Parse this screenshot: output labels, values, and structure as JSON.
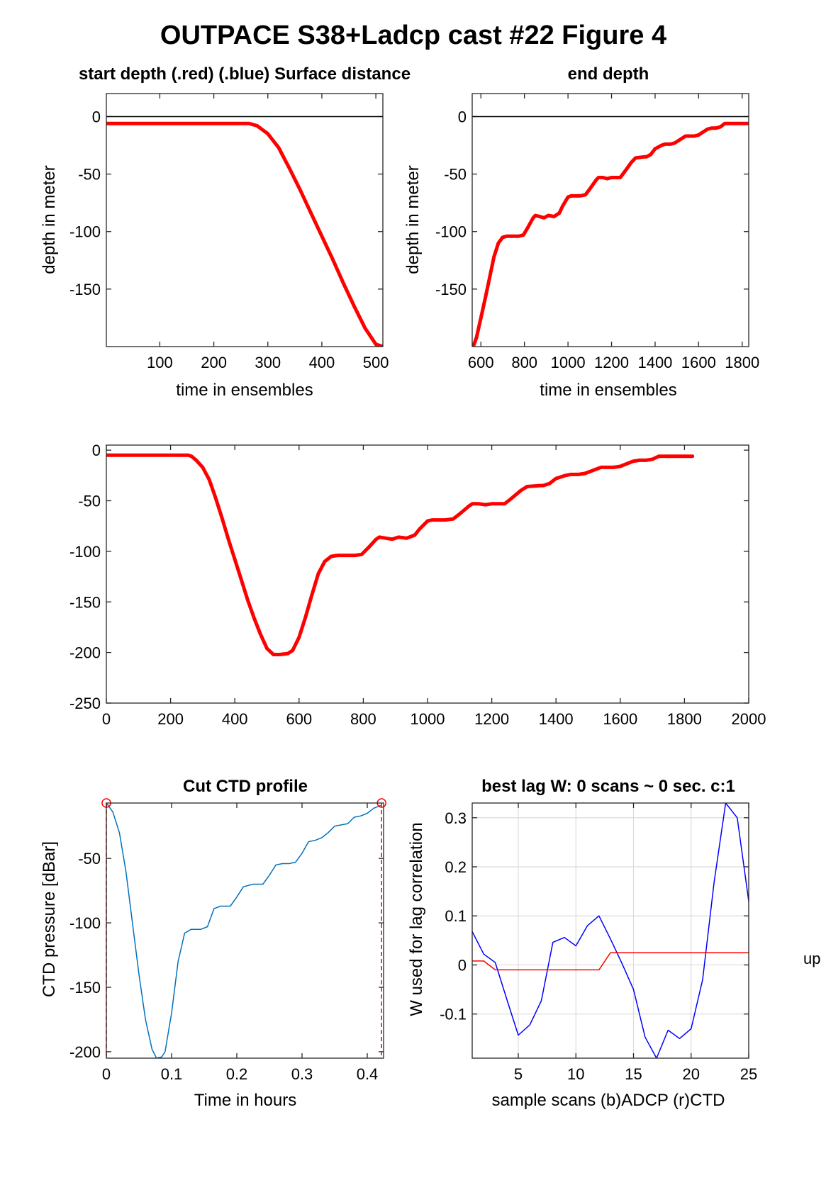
{
  "figure": {
    "suptitle": "OUTPACE S38+Ladcp cast #22   Figure 4",
    "stray_text": "up"
  },
  "chart_data": [
    {
      "id": "p1",
      "type": "line",
      "title": "start depth (.red) (.blue) Surface distance",
      "xlabel": "time in ensembles",
      "ylabel": "depth in meter",
      "xlim": [
        1,
        513
      ],
      "ylim": [
        -200,
        20
      ],
      "xticks": [
        100,
        200,
        300,
        400,
        500
      ],
      "yticks": [
        0,
        -50,
        -100,
        -150
      ],
      "grid": false,
      "box": true,
      "hline": 0,
      "series": [
        {
          "color": "#ff0000",
          "width": 5,
          "x": [
            1,
            100,
            200,
            255,
            265,
            280,
            300,
            320,
            340,
            360,
            380,
            400,
            420,
            440,
            460,
            480,
            500,
            513
          ],
          "y": [
            -6,
            -6,
            -6,
            -6,
            -6,
            -8,
            -15,
            -27,
            -45,
            -64,
            -84,
            -104,
            -124,
            -145,
            -165,
            -184,
            -198,
            -200
          ]
        }
      ]
    },
    {
      "id": "p2",
      "type": "line",
      "title": "end depth",
      "xlabel": "time in ensembles",
      "ylabel": "depth in meter",
      "xlim": [
        560,
        1830
      ],
      "ylim": [
        -200,
        20
      ],
      "xticks": [
        600,
        800,
        1000,
        1200,
        1400,
        1600,
        1800
      ],
      "yticks": [
        0,
        -50,
        -100,
        -150
      ],
      "grid": false,
      "box": true,
      "hline": 0,
      "series": [
        {
          "color": "#ff0000",
          "width": 5,
          "x": [
            565,
            580,
            600,
            620,
            640,
            660,
            680,
            700,
            720,
            760,
            775,
            795,
            820,
            840,
            850,
            870,
            890,
            910,
            935,
            960,
            975,
            1000,
            1015,
            1040,
            1055,
            1080,
            1100,
            1130,
            1140,
            1160,
            1180,
            1200,
            1215,
            1240,
            1260,
            1290,
            1310,
            1350,
            1360,
            1380,
            1400,
            1430,
            1445,
            1470,
            1490,
            1540,
            1555,
            1580,
            1600,
            1640,
            1660,
            1680,
            1700,
            1720,
            1825
          ],
          "y": [
            -200,
            -192,
            -175,
            -158,
            -140,
            -122,
            -110,
            -105,
            -104,
            -104,
            -104,
            -103,
            -95,
            -88,
            -86,
            -87,
            -88,
            -86,
            -87,
            -84,
            -78,
            -70,
            -69,
            -69,
            -69,
            -68,
            -63,
            -55,
            -53,
            -53,
            -54,
            -53,
            -53,
            -53,
            -48,
            -40,
            -36,
            -35,
            -35,
            -33,
            -28,
            -25,
            -24,
            -24,
            -23,
            -17,
            -17,
            -17,
            -16,
            -11,
            -10,
            -10,
            -9,
            -6,
            -6
          ]
        }
      ]
    },
    {
      "id": "p3",
      "type": "line",
      "title": "",
      "xlabel": "",
      "ylabel": "",
      "xlim": [
        0,
        2000
      ],
      "ylim": [
        -250,
        5
      ],
      "xticks": [
        0,
        200,
        400,
        600,
        800,
        1000,
        1200,
        1400,
        1600,
        1800,
        2000
      ],
      "yticks": [
        0,
        -50,
        -100,
        -150,
        -200,
        -250
      ],
      "grid": false,
      "box": true,
      "series": [
        {
          "color": "#ff0000",
          "width": 5,
          "x": [
            1,
            100,
            200,
            255,
            265,
            280,
            300,
            320,
            340,
            360,
            380,
            400,
            420,
            440,
            460,
            480,
            500,
            520,
            540,
            565,
            580,
            600,
            620,
            640,
            660,
            680,
            700,
            720,
            760,
            775,
            795,
            820,
            840,
            850,
            870,
            890,
            910,
            935,
            960,
            975,
            1000,
            1015,
            1040,
            1055,
            1080,
            1100,
            1130,
            1140,
            1160,
            1180,
            1200,
            1215,
            1240,
            1260,
            1290,
            1310,
            1350,
            1360,
            1380,
            1400,
            1430,
            1445,
            1470,
            1490,
            1540,
            1555,
            1580,
            1600,
            1640,
            1660,
            1680,
            1700,
            1720,
            1825
          ],
          "y": [
            -5,
            -5,
            -5,
            -5,
            -6,
            -10,
            -17,
            -29,
            -47,
            -67,
            -88,
            -108,
            -128,
            -148,
            -166,
            -182,
            -196,
            -202,
            -202,
            -201,
            -198,
            -185,
            -165,
            -143,
            -122,
            -110,
            -105,
            -104,
            -104,
            -104,
            -103,
            -95,
            -88,
            -86,
            -87,
            -88,
            -86,
            -87,
            -84,
            -78,
            -70,
            -69,
            -69,
            -69,
            -68,
            -63,
            -55,
            -53,
            -53,
            -54,
            -53,
            -53,
            -53,
            -48,
            -40,
            -36,
            -35,
            -35,
            -33,
            -28,
            -25,
            -24,
            -24,
            -23,
            -17,
            -17,
            -17,
            -16,
            -11,
            -10,
            -10,
            -9,
            -6,
            -6
          ]
        }
      ]
    },
    {
      "id": "p4",
      "type": "line",
      "title": "Cut CTD profile",
      "xlabel": "Time in hours",
      "ylabel": "CTD pressure [dBar]",
      "xlim": [
        0,
        0.425
      ],
      "ylim": [
        -205,
        -7
      ],
      "xticks": [
        0,
        0.1,
        0.2,
        0.3,
        0.4
      ],
      "yticks": [
        -50,
        -100,
        -150,
        -200
      ],
      "grid": false,
      "box": true,
      "vlines": [
        0,
        0.422
      ],
      "markers": [
        {
          "x": 0,
          "y": -7
        },
        {
          "x": 0.422,
          "y": -7
        }
      ],
      "series": [
        {
          "color": "#0072bd",
          "width": 1.5,
          "x": [
            0,
            0.01,
            0.02,
            0.03,
            0.04,
            0.05,
            0.06,
            0.07,
            0.077,
            0.085,
            0.09,
            0.1,
            0.11,
            0.12,
            0.13,
            0.145,
            0.155,
            0.165,
            0.175,
            0.19,
            0.2,
            0.21,
            0.225,
            0.24,
            0.25,
            0.26,
            0.27,
            0.28,
            0.29,
            0.3,
            0.31,
            0.32,
            0.33,
            0.34,
            0.35,
            0.36,
            0.37,
            0.38,
            0.39,
            0.4,
            0.41,
            0.42
          ],
          "y": [
            -7,
            -14,
            -30,
            -60,
            -100,
            -140,
            -175,
            -198,
            -205,
            -204,
            -200,
            -170,
            -130,
            -108,
            -105,
            -105,
            -103,
            -89,
            -87,
            -87,
            -80,
            -72,
            -70,
            -70,
            -63,
            -55,
            -54,
            -54,
            -53,
            -46,
            -37,
            -36,
            -34,
            -30,
            -25,
            -24,
            -23,
            -18,
            -17,
            -15,
            -11,
            -9
          ]
        }
      ]
    },
    {
      "id": "p5",
      "type": "line",
      "title": "best lag W: 0 scans ~ 0 sec.  c:1",
      "xlabel": "sample scans (b)ADCP (r)CTD",
      "ylabel": "W used for lag correlation",
      "xlim": [
        1,
        25
      ],
      "ylim": [
        -0.19,
        0.33
      ],
      "xticks": [
        5,
        10,
        15,
        20,
        25
      ],
      "yticks": [
        0.3,
        0.2,
        0.1,
        0,
        -0.1
      ],
      "grid": true,
      "box": true,
      "series": [
        {
          "name": "ADCP",
          "color": "#0000ff",
          "width": 1.5,
          "x": [
            1,
            2,
            3,
            4,
            5,
            6,
            7,
            8,
            9,
            10,
            11,
            12,
            13,
            14,
            15,
            16,
            17,
            18,
            19,
            20,
            21,
            22,
            23,
            24,
            25
          ],
          "y": [
            0.068,
            0.022,
            0.005,
            -0.07,
            -0.143,
            -0.122,
            -0.073,
            0.046,
            0.056,
            0.039,
            0.08,
            0.1,
            0.053,
            0.003,
            -0.05,
            -0.147,
            -0.19,
            -0.133,
            -0.15,
            -0.13,
            -0.03,
            0.17,
            0.33,
            0.3,
            0.13
          ]
        },
        {
          "name": "CTD",
          "color": "#ff0000",
          "width": 1.5,
          "x": [
            1,
            2,
            3,
            4,
            5,
            6,
            7,
            8,
            9,
            10,
            11,
            12,
            13,
            14,
            15,
            16,
            17,
            18,
            19,
            20,
            21,
            22,
            23,
            24,
            25
          ],
          "y": [
            0.008,
            0.008,
            -0.01,
            -0.01,
            -0.01,
            -0.01,
            -0.01,
            -0.01,
            -0.01,
            -0.01,
            -0.01,
            -0.01,
            0.025,
            0.025,
            0.025,
            0.025,
            0.025,
            0.025,
            0.025,
            0.025,
            0.025,
            0.025,
            0.025,
            0.025,
            0.025
          ]
        }
      ]
    }
  ]
}
